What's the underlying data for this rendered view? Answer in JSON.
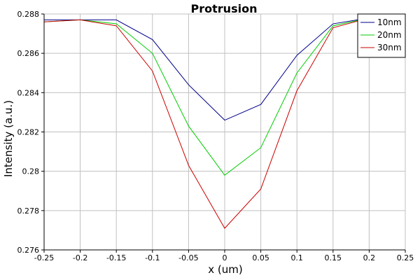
{
  "chart_data": {
    "type": "line",
    "title": "Protrusion",
    "xlabel": "x (um)",
    "ylabel": "Intensity (a.u.)",
    "xlim": [
      -0.25,
      0.25
    ],
    "ylim": [
      0.276,
      0.288
    ],
    "x_ticks": [
      -0.25,
      -0.2,
      -0.15,
      -0.1,
      -0.05,
      0,
      0.05,
      0.1,
      0.15,
      0.2,
      0.25
    ],
    "x_tick_labels": [
      "-0.25",
      "-0.2",
      "-0.15",
      "-0.1",
      "-0.05",
      "0",
      "0.05",
      "0.1",
      "0.15",
      "0.2",
      "0.25"
    ],
    "y_ticks": [
      0.276,
      0.278,
      0.28,
      0.282,
      0.284,
      0.286,
      0.288
    ],
    "y_tick_labels": [
      "0.276",
      "0.278",
      "0.28",
      "0.282",
      "0.284",
      "0.286",
      "0.288"
    ],
    "grid": true,
    "legend_position": "top-right",
    "x": [
      -0.25,
      -0.2,
      -0.15,
      -0.1,
      -0.05,
      0,
      0.05,
      0.1,
      0.15,
      0.2
    ],
    "series": [
      {
        "name": "10nm",
        "color": "#00008b",
        "values": [
          0.2877,
          0.2877,
          0.2877,
          0.2867,
          0.2844,
          0.2826,
          0.2834,
          0.2859,
          0.2875,
          0.2878
        ]
      },
      {
        "name": "20nm",
        "color": "#00cc00",
        "values": [
          0.2876,
          0.2877,
          0.2875,
          0.286,
          0.2823,
          0.2798,
          0.2812,
          0.285,
          0.2874,
          0.2878
        ]
      },
      {
        "name": "30nm",
        "color": "#cc0000",
        "values": [
          0.2876,
          0.2877,
          0.2874,
          0.2851,
          0.2803,
          0.2771,
          0.2791,
          0.2841,
          0.2873,
          0.2878
        ]
      }
    ]
  }
}
